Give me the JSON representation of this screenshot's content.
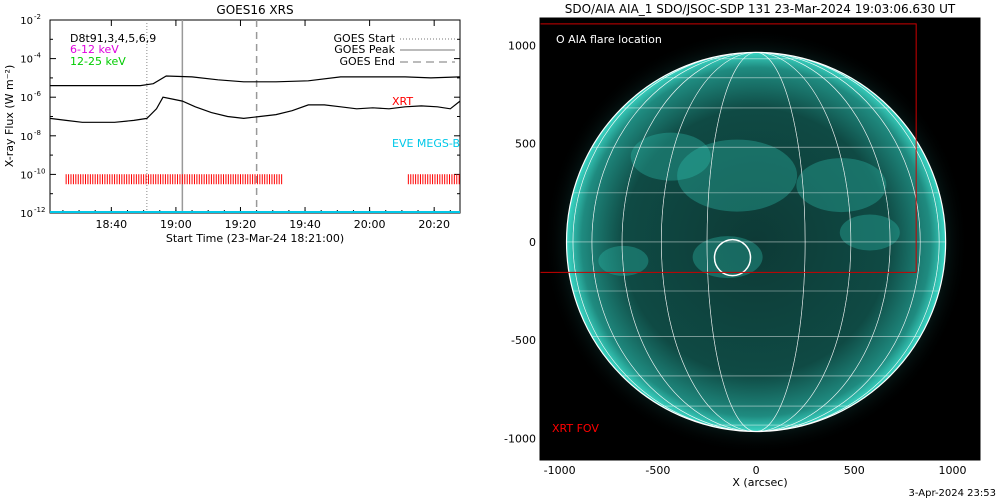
{
  "colors": {
    "goes_long": "#000000",
    "goes_short": "#000000",
    "xrt": "#ff0000",
    "eve": "#00c8e8",
    "channel_low": "#e000e0",
    "channel_high": "#00cc00",
    "sun_glow": "#2fbfb0",
    "fov_box": "#cc0000",
    "grid": "#ffffff"
  },
  "left_chart": {
    "title": "GOES16 XRS",
    "ylabel": "X-ray Flux (W m⁻²)",
    "xlabel": "Start Time (23-Mar-24 18:21:00)",
    "legend_left": {
      "line1": "D8t91,3,4,5,6,9",
      "line2": "6-12 keV",
      "line3": "12-25 keV"
    },
    "legend_right": {
      "start": "GOES Start",
      "peak": "GOES Peak",
      "end": "GOES End"
    },
    "xrt_label": "XRT",
    "eve_label": "EVE MEGS-B",
    "y_ticks": [
      {
        "exp": "-2",
        "label": "10"
      },
      {
        "exp": "-4",
        "label": "10"
      },
      {
        "exp": "-6",
        "label": "10"
      },
      {
        "exp": "-8",
        "label": "10"
      },
      {
        "exp": "-10",
        "label": "10"
      },
      {
        "exp": "-12",
        "label": "10"
      }
    ],
    "x_ticks": [
      "18:40",
      "19:00",
      "19:20",
      "19:40",
      "20:00",
      "20:20"
    ]
  },
  "chart_data": {
    "type": "line",
    "title": "GOES16 XRS",
    "xlabel": "Start Time (23-Mar-24 18:21:00)",
    "ylabel": "X-ray Flux (W m⁻²)",
    "x_unit": "minutes after 18:21:00",
    "xlim": [
      0,
      127
    ],
    "ylim_log10": [
      -12,
      -2
    ],
    "y_scale": "log",
    "vertical_markers": {
      "goes_start": 30,
      "goes_peak": 41,
      "goes_end": 64
    },
    "series": [
      {
        "style": "upper",
        "x": [
          0,
          10,
          20,
          28,
          32,
          36,
          44,
          52,
          60,
          70,
          80,
          90,
          100,
          110,
          118,
          127
        ],
        "log10_y": [
          -5.4,
          -5.4,
          -5.4,
          -5.4,
          -5.3,
          -4.9,
          -4.95,
          -5.1,
          -5.2,
          -5.2,
          -5.15,
          -4.95,
          -4.95,
          -4.95,
          -5.0,
          -4.95
        ]
      },
      {
        "style": "lower",
        "x": [
          0,
          5,
          10,
          20,
          26,
          30,
          33,
          35,
          38,
          41,
          45,
          50,
          55,
          60,
          65,
          70,
          75,
          80,
          85,
          90,
          95,
          100,
          105,
          110,
          115,
          120,
          124,
          127
        ],
        "log10_y": [
          -7.1,
          -7.2,
          -7.3,
          -7.3,
          -7.2,
          -7.1,
          -6.6,
          -6.0,
          -6.1,
          -6.2,
          -6.5,
          -6.8,
          -7.0,
          -7.1,
          -7.0,
          -6.9,
          -6.7,
          -6.4,
          -6.4,
          -6.5,
          -6.6,
          -6.55,
          -6.6,
          -6.5,
          -6.45,
          -6.5,
          -6.6,
          -6.2
        ]
      }
    ],
    "xrt_observations": [
      {
        "x_start": 5,
        "x_end": 72
      },
      {
        "x_start": 111,
        "x_end": 127
      }
    ],
    "eve_level_log10": -12
  },
  "right_image": {
    "title": "SDO/AIA AIA_1 SDO/JSOC-SDP 131 23-Mar-2024 19:03:06.630 UT",
    "flare_label": "O AIA flare location",
    "fov_label": "XRT FOV",
    "xlabel": "X (arcsec)",
    "x_ticks": [
      "-1000",
      "-500",
      "0",
      "500",
      "1000"
    ],
    "y_ticks": [
      "1000",
      "500",
      "0",
      "-500",
      "-1000"
    ],
    "sun_radius_arcsec": 965,
    "flare_center_arcsec": [
      -120,
      -80
    ],
    "fov_box_arcsec": {
      "x0": -1100,
      "y0": -155,
      "x1": 815,
      "y1": 1110
    },
    "view_range_arcsec": [
      -1100,
      1140
    ]
  },
  "footer_date": "3-Apr-2024 23:53"
}
